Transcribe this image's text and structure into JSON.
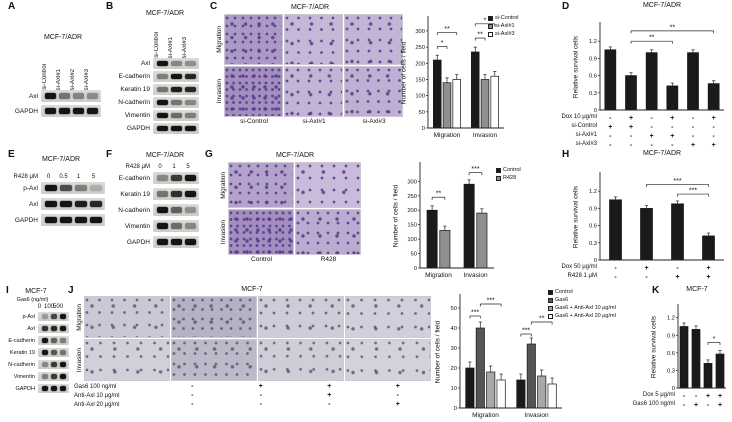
{
  "panels": {
    "A": {
      "label": "A",
      "title": "MCF-7/ADR",
      "blot": {
        "lanes": [
          "si-Control",
          "si-Axl#1",
          "si-Axl#2",
          "si-Axl#3"
        ],
        "rows": [
          {
            "label": "Axl",
            "bands": [
              1,
              0.5,
              0.42,
              0.38
            ]
          },
          {
            "label": "GAPDH",
            "bands": [
              1,
              1,
              1,
              1
            ]
          }
        ]
      }
    },
    "B": {
      "label": "B",
      "title": "MCF-7/ADR",
      "blot": {
        "lanes": [
          "si-Control",
          "si-Axl#1",
          "si-Axl#3"
        ],
        "rows": [
          {
            "label": "Axl",
            "bands": [
              1,
              0.4,
              0.35
            ]
          },
          {
            "label": "E-cadherin",
            "bands": [
              0.45,
              1,
              0.9
            ]
          },
          {
            "label": "Keratin 19",
            "bands": [
              0.5,
              0.95,
              0.9
            ]
          },
          {
            "label": "N-cadherin",
            "bands": [
              1,
              0.5,
              0.4
            ]
          },
          {
            "label": "Vimentin",
            "bands": [
              1,
              0.55,
              0.45
            ]
          },
          {
            "label": "GAPDH",
            "bands": [
              1,
              1,
              1
            ]
          }
        ]
      }
    },
    "C": {
      "label": "C",
      "title": "MCF-7/ADR",
      "transwell": {
        "row_labels": [
          "Migration",
          "Invasion"
        ],
        "col_labels": [
          "si-Control",
          "si-Axl#1",
          "si-Axl#3"
        ],
        "densities": [
          [
            0.8,
            0.45,
            0.5
          ],
          [
            0.95,
            0.5,
            0.55
          ]
        ]
      },
      "chart_data": {
        "type": "bar-grouped",
        "ylabel": "Number of cells / field",
        "ymax": 340,
        "yticks": [
          0,
          50,
          100,
          150,
          200,
          250,
          300
        ],
        "categories": [
          "Migration",
          "Invasion"
        ],
        "series": [
          {
            "name": "si-Control",
            "color": "#1a1a1a",
            "values": [
              210,
              235
            ]
          },
          {
            "name": "si-Axl#1",
            "color": "#8f8f8f",
            "values": [
              140,
              150
            ]
          },
          {
            "name": "si-Axl#3",
            "color": "#ffffff",
            "values": [
              150,
              160
            ]
          }
        ],
        "err": 15,
        "brackets": [
          {
            "a": [
              0,
              0
            ],
            "b": [
              0,
              1
            ],
            "y": 252,
            "label": "*"
          },
          {
            "a": [
              0,
              0
            ],
            "b": [
              0,
              2
            ],
            "y": 295,
            "label": "**"
          },
          {
            "a": [
              1,
              0
            ],
            "b": [
              1,
              1
            ],
            "y": 278,
            "label": "**"
          },
          {
            "a": [
              1,
              0
            ],
            "b": [
              1,
              2
            ],
            "y": 322,
            "label": "*"
          }
        ]
      }
    },
    "D": {
      "label": "D",
      "title": "MCF-7/ADR",
      "chart_data": {
        "type": "bar-simple",
        "ylabel": "Relative survival cells",
        "ymax": 1.5,
        "yticks": [
          0,
          0.3,
          0.6,
          0.9,
          1.2
        ],
        "color": "#1a1a1a",
        "err": 0.05,
        "values": [
          1.05,
          0.6,
          1.0,
          0.42,
          1.0,
          0.46
        ],
        "brackets": [
          {
            "a": 1,
            "b": 3,
            "y": 1.2,
            "label": "**"
          },
          {
            "a": 1,
            "b": 5,
            "y": 1.38,
            "label": "**"
          }
        ],
        "matrix": [
          {
            "label": "Dox 10 μg/ml",
            "signs": [
              "-",
              "+",
              "-",
              "+",
              "-",
              "+"
            ]
          },
          {
            "label": "si-Control",
            "signs": [
              "+",
              "+",
              "-",
              "-",
              "-",
              "-"
            ]
          },
          {
            "label": "si-Axl#1",
            "signs": [
              "-",
              "-",
              "+",
              "+",
              "-",
              "-"
            ]
          },
          {
            "label": "si-Axl#3",
            "signs": [
              "-",
              "-",
              "-",
              "-",
              "+",
              "+"
            ]
          }
        ]
      }
    },
    "E": {
      "label": "E",
      "title": "MCF-7/ADR",
      "blot": {
        "unit": "R428 μM",
        "lanes": [
          "0",
          "0.5",
          "1",
          "5"
        ],
        "rows": [
          {
            "label": "p-Axl",
            "bands": [
              1,
              0.7,
              0.45,
              0.2
            ]
          },
          {
            "label": "Axl",
            "bands": [
              1,
              1,
              0.95,
              0.9
            ]
          },
          {
            "label": "GAPDH",
            "bands": [
              1,
              1,
              1,
              1
            ]
          }
        ]
      }
    },
    "F": {
      "label": "F",
      "title": "MCF-7/ADR",
      "blot": {
        "unit": "R428 μM",
        "lanes": [
          "0",
          "1",
          "5"
        ],
        "rows": [
          {
            "label": "E-cadherin",
            "bands": [
              0.4,
              0.8,
              1
            ]
          },
          {
            "label": "Keratin 19",
            "bands": [
              0.5,
              0.85,
              1
            ]
          },
          {
            "label": "N-cadherin",
            "bands": [
              1,
              0.6,
              0.35
            ]
          },
          {
            "label": "Vimentin",
            "bands": [
              1,
              0.55,
              0.4
            ]
          },
          {
            "label": "GAPDH",
            "bands": [
              1,
              1,
              1
            ]
          }
        ]
      }
    },
    "G": {
      "label": "G",
      "title": "MCF-7/ADR",
      "transwell": {
        "row_labels": [
          "Migration",
          "Invasion"
        ],
        "col_labels": [
          "Control",
          "R428"
        ],
        "densities": [
          [
            0.7,
            0.4
          ],
          [
            0.95,
            0.6
          ]
        ]
      },
      "chart_data": {
        "type": "bar-grouped",
        "ylabel": "Number of cells / field",
        "ymax": 360,
        "yticks": [
          0,
          50,
          100,
          150,
          200,
          250,
          300
        ],
        "categories": [
          "Migration",
          "Invasion"
        ],
        "series": [
          {
            "name": "Control",
            "color": "#1a1a1a",
            "values": [
              200,
              290
            ]
          },
          {
            "name": "R428",
            "color": "#8f8f8f",
            "values": [
              130,
              190
            ]
          }
        ],
        "err": 15,
        "brackets": [
          {
            "a": [
              0,
              0
            ],
            "b": [
              0,
              1
            ],
            "y": 245,
            "label": "**"
          },
          {
            "a": [
              1,
              0
            ],
            "b": [
              1,
              1
            ],
            "y": 330,
            "label": "***"
          }
        ]
      }
    },
    "H": {
      "label": "H",
      "title": "MCF-7/ADR",
      "chart_data": {
        "type": "bar-simple",
        "ylabel": "Relative survival cells",
        "ymax": 1.5,
        "yticks": [
          0,
          0.3,
          0.6,
          0.9,
          1.2
        ],
        "color": "#1a1a1a",
        "err": 0.05,
        "values": [
          1.05,
          0.9,
          0.98,
          0.42
        ],
        "brackets": [
          {
            "a": 1,
            "b": 3,
            "y": 1.32,
            "label": "***"
          },
          {
            "a": 2,
            "b": 3,
            "y": 1.15,
            "label": "***"
          }
        ],
        "matrix": [
          {
            "label": "Dox 50 μg/ml",
            "signs": [
              "-",
              "+",
              "-",
              "+"
            ]
          },
          {
            "label": "R428 1 μM",
            "signs": [
              "-",
              "-",
              "+",
              "+"
            ]
          }
        ]
      }
    },
    "I": {
      "label": "I",
      "title": "MCF-7",
      "blot": {
        "unit": "Gas6 (ng/ml)",
        "lanes": [
          "0",
          "100",
          "500"
        ],
        "rows": [
          {
            "label": "p-Axl",
            "bands": [
              0.3,
              0.75,
              1
            ]
          },
          {
            "label": "Axl",
            "bands": [
              0.85,
              0.9,
              1
            ]
          },
          {
            "label": "E-cadherin",
            "bands": [
              1,
              0.6,
              0.45
            ]
          },
          {
            "label": "Keratin 19",
            "bands": [
              1,
              0.65,
              0.5
            ]
          },
          {
            "label": "N-cadherin",
            "bands": [
              0.4,
              0.8,
              1
            ]
          },
          {
            "label": "Vimentin",
            "bands": [
              0.45,
              0.8,
              1
            ]
          },
          {
            "label": "GAPDH",
            "bands": [
              1,
              1,
              1
            ]
          }
        ]
      }
    },
    "J": {
      "label": "J",
      "title": "MCF-7",
      "transwell": {
        "row_labels": [
          "Migration",
          "Invasion"
        ],
        "densities": [
          [
            0.35,
            0.65,
            0.3,
            0.25
          ],
          [
            0.25,
            0.55,
            0.28,
            0.22
          ]
        ],
        "matrix": [
          {
            "label": "Gas6 100 ng/ml",
            "signs": [
              "-",
              "+",
              "+",
              "+"
            ]
          },
          {
            "label": "Anti-Axl 10 μg/ml",
            "signs": [
              "-",
              "-",
              "+",
              "-"
            ]
          },
          {
            "label": "Anti-Axl 20 μg/ml",
            "signs": [
              "-",
              "-",
              "-",
              "+"
            ]
          }
        ]
      },
      "chart_data": {
        "type": "bar-grouped",
        "ylabel": "Number of cells / field",
        "ymax": 56,
        "yticks": [
          0,
          10,
          20,
          30,
          40,
          50
        ],
        "categories": [
          "Migration",
          "Invasion"
        ],
        "series": [
          {
            "name": "Control",
            "color": "#1a1a1a",
            "values": [
              20,
              14
            ]
          },
          {
            "name": "Gas6",
            "color": "#555555",
            "values": [
              40,
              32
            ]
          },
          {
            "name": "Gas6 + Anti-Axl 10 μg/ml",
            "color": "#a8a8a8",
            "values": [
              18,
              16
            ]
          },
          {
            "name": "Gas6 + Anti-Axl 20 μg/ml",
            "color": "#ffffff",
            "values": [
              14,
              12
            ]
          }
        ],
        "err": 3,
        "brackets": [
          {
            "a": [
              0,
              0
            ],
            "b": [
              0,
              1
            ],
            "y": 46,
            "label": "***"
          },
          {
            "a": [
              0,
              1
            ],
            "b": [
              0,
              3
            ],
            "y": 52,
            "label": "***"
          },
          {
            "a": [
              1,
              0
            ],
            "b": [
              1,
              1
            ],
            "y": 37,
            "label": "***"
          },
          {
            "a": [
              1,
              1
            ],
            "b": [
              1,
              3
            ],
            "y": 43,
            "label": "**"
          }
        ]
      }
    },
    "K": {
      "label": "K",
      "title": "MCF-7",
      "chart_data": {
        "type": "bar-simple",
        "ylabel": "Relative survival cells",
        "ymax": 1.4,
        "yticks": [
          0,
          0.3,
          0.6,
          0.9,
          1.2
        ],
        "color": "#1a1a1a",
        "err": 0.06,
        "values": [
          1.05,
          1.0,
          0.42,
          0.58
        ],
        "brackets": [
          {
            "a": 2,
            "b": 3,
            "y": 0.78,
            "label": "*"
          }
        ],
        "matrix": [
          {
            "label": "Dox 5 μg/ml",
            "signs": [
              "-",
              "-",
              "+",
              "+"
            ]
          },
          {
            "label": "Gas6 100 ng/ml",
            "signs": [
              "-",
              "+",
              "-",
              "+"
            ]
          }
        ]
      }
    }
  }
}
